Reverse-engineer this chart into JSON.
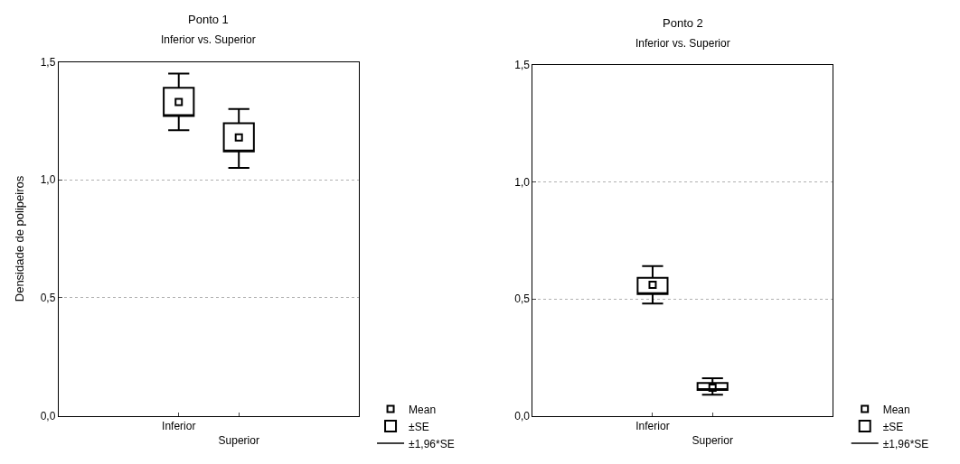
{
  "chart_data": [
    {
      "type": "box",
      "title": "Ponto 1",
      "subtitle": "Inferior vs. Superior",
      "ylabel": "Densidade de polipeiros",
      "categories": [
        "Inferior",
        "Superior"
      ],
      "series": [
        {
          "name": "Mean",
          "type": "scatter",
          "color": "#000000",
          "values": [
            1.33,
            1.18
          ],
          "marker": "square"
        },
        {
          "name": "±SE",
          "color": "#000000",
          "boxes": [
            {
              "low": 1.21,
              "q1": 1.27,
              "q3": 1.39,
              "high": 1.45
            },
            {
              "low": 1.05,
              "q1": 1.12,
              "q3": 1.24,
              "high": 1.3
            }
          ]
        }
      ],
      "annotations": [
        "±1,96*SE"
      ],
      "ylim": [
        0,
        1.5
      ],
      "yticks": [
        {
          "value": 0,
          "label": "0,0"
        },
        {
          "value": 0.5,
          "label": "0,5"
        },
        {
          "value": 1,
          "label": "1,0"
        },
        {
          "value": 1.5,
          "label": "1,5"
        }
      ],
      "grid": "y",
      "legend": "bottom right"
    },
    {
      "type": "box",
      "title": "Ponto 2",
      "subtitle": "Inferior vs. Superior",
      "categories": [
        "Inferior",
        "Superior"
      ],
      "series": [
        {
          "name": "Mean",
          "type": "scatter",
          "color": "#000000",
          "values": [
            0.56,
            0.12
          ],
          "marker": "square"
        },
        {
          "name": "±SE",
          "color": "#000000",
          "boxes": [
            {
              "low": 0.48,
              "q1": 0.52,
              "q3": 0.59,
              "high": 0.64
            },
            {
              "low": 0.09,
              "q1": 0.11,
              "q3": 0.14,
              "high": 0.16
            }
          ]
        }
      ],
      "annotations": [
        "±1,96*SE"
      ],
      "ylim": [
        0,
        1.5
      ],
      "yticks": [
        {
          "value": 0,
          "label": "0,0"
        },
        {
          "value": 0.5,
          "label": "0,5"
        },
        {
          "value": 1,
          "label": "1,0"
        },
        {
          "value": 1.5,
          "label": "1,5"
        }
      ],
      "grid": "y",
      "legend": "bottom right"
    }
  ]
}
